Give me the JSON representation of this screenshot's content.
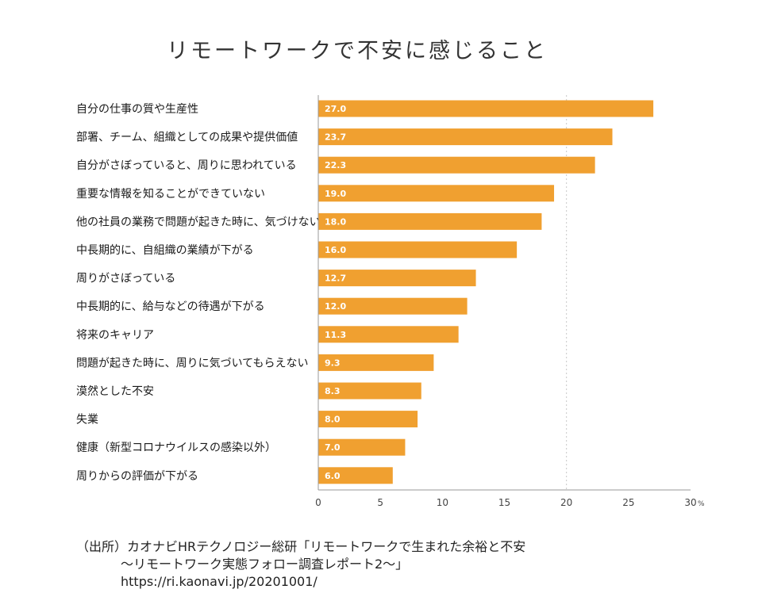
{
  "chart_data": {
    "type": "bar",
    "orientation": "horizontal",
    "title": "リモートワークで不安に感じること",
    "categories": [
      "自分の仕事の質や生産性",
      "部署、チーム、組織としての成果や提供価値",
      "自分がさぼっていると、周りに思われている",
      "重要な情報を知ることができていない",
      "他の社員の業務で問題が起きた時に、気づけない",
      "中長期的に、自組織の業績が下がる",
      "周りがさぼっている",
      "中長期的に、給与などの待遇が下がる",
      "将来のキャリア",
      "問題が起きた時に、周りに気づいてもらえない",
      "漠然とした不安",
      "失業",
      "健康（新型コロナウイルスの感染以外）",
      "周りからの評価が下がる"
    ],
    "values": [
      27.0,
      23.7,
      22.3,
      19.0,
      18.0,
      16.0,
      12.7,
      12.0,
      11.3,
      9.3,
      8.3,
      8.0,
      7.0,
      6.0
    ],
    "value_labels": [
      "27.0",
      "23.7",
      "22.3",
      "19.0",
      "18.0",
      "16.0",
      "12.7",
      "12.0",
      "11.3",
      "9.3",
      "8.3",
      "8.0",
      "7.0",
      "6.0"
    ],
    "xlim": [
      0,
      30
    ],
    "xticks": [
      0,
      5,
      10,
      15,
      20,
      25,
      30
    ],
    "xtick_labels": [
      "0",
      "5",
      "10",
      "15",
      "20",
      "25",
      "30"
    ],
    "x_unit": "%",
    "grid": "dotted vertical at 20",
    "colors": {
      "bar": "#f0a030",
      "axis": "#999999",
      "grid": "#c8c8c8"
    }
  },
  "source": {
    "line1": "（出所）カオナビHRテクノロジー総研「リモートワークで生まれた余裕と不安",
    "line2": "～リモートワーク実態フォロー調査レポート2～」",
    "line3": "https://ri.kaonavi.jp/20201001/"
  }
}
